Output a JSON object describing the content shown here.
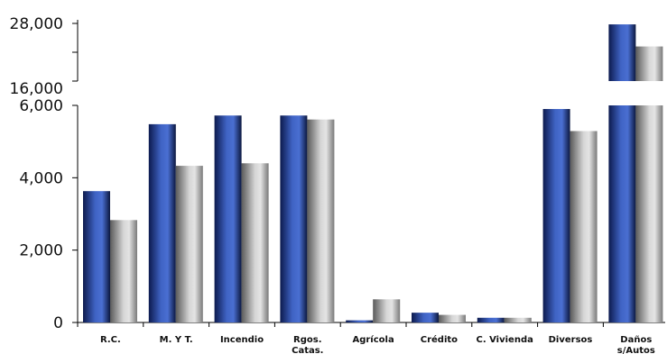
{
  "chart_data": {
    "type": "bar",
    "title": "",
    "xlabel": "",
    "ylabel": "",
    "categories": [
      "R.C.",
      "M. Y T.",
      "Incendio",
      "Rgos. Catas.",
      "Agrícola",
      "Crédito",
      "C. Vivienda",
      "Diversos",
      "Daños s/Autos"
    ],
    "category_lines": [
      [
        "R.C."
      ],
      [
        "M. Y T."
      ],
      [
        "Incendio"
      ],
      [
        "Rgos.",
        "Catas."
      ],
      [
        "Agrícola"
      ],
      [
        "Crédito"
      ],
      [
        "C. Vivienda"
      ],
      [
        "Diversos"
      ],
      [
        "Daños",
        "s/Autos"
      ]
    ],
    "series": [
      {
        "values": [
          3630,
          5480,
          5720,
          5720,
          60,
          270,
          130,
          5900,
          27800
        ]
      },
      {
        "values": [
          2830,
          4330,
          4400,
          5610,
          640,
          210,
          130,
          5290,
          23200
        ]
      }
    ],
    "series_colors": [
      "#3353a8",
      "#a9a9a9"
    ],
    "axis": {
      "broken": true,
      "lower_ylim": [
        0,
        6000
      ],
      "upper_ylim": [
        16000,
        28000
      ],
      "lower_ticks": [
        0,
        2000,
        4000,
        6000
      ],
      "upper_ticks": [
        16000,
        28000
      ],
      "tick_labels": {
        "0": "0",
        "2000": "2,000",
        "4000": "4,000",
        "6000": "6,000",
        "16000": "16,000",
        "28000": "28,000"
      },
      "grid": false
    },
    "legend": "none"
  }
}
